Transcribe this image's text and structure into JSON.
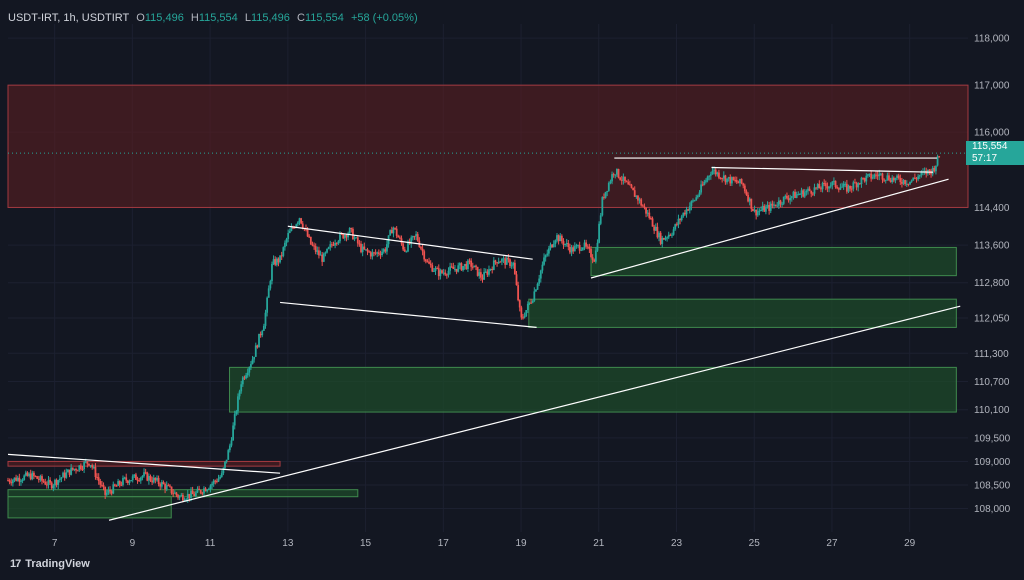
{
  "header": {
    "symbol": "USDT-IRT, 1h, USDTIRT",
    "open_label": "O",
    "open": "115,496",
    "high_label": "H",
    "high": "115,554",
    "low_label": "L",
    "low": "115,496",
    "close_label": "C",
    "close": "115,554",
    "change": "+58 (+0.05%)"
  },
  "last_price": {
    "value": "115,554",
    "countdown": "57:17"
  },
  "brand": {
    "name": "TradingView"
  },
  "colors": {
    "background": "#131722",
    "up": "#26a69a",
    "down": "#ef5350",
    "supply_zone": "#5a1e22",
    "demand_zone": "#1e4a2a",
    "trendline": "#ffffff",
    "axis_text": "#b2b5be"
  },
  "chart_data": {
    "type": "candlestick",
    "x_axis": {
      "ticks": [
        "7",
        "9",
        "11",
        "13",
        "15",
        "17",
        "19",
        "21",
        "23",
        "25",
        "27",
        "29"
      ],
      "range_days": [
        5.8,
        30.5
      ]
    },
    "y_axis": {
      "ticks": [
        "118,000",
        "117,000",
        "116,000",
        "114,400",
        "113,600",
        "112,800",
        "112,050",
        "111,300",
        "110,700",
        "110,100",
        "109,500",
        "109,000",
        "108,500",
        "108,000"
      ],
      "range": [
        107500,
        118300
      ]
    },
    "supply_zones": [
      {
        "x_start": 5.8,
        "x_end": 30.5,
        "y_low": 114400,
        "y_high": 117000
      },
      {
        "x_start": 5.8,
        "x_end": 12.8,
        "y_low": 108900,
        "y_high": 109000
      }
    ],
    "demand_zones": [
      {
        "x_start": 11.5,
        "x_end": 30.2,
        "y_low": 110050,
        "y_high": 111000
      },
      {
        "x_start": 19.2,
        "x_end": 30.2,
        "y_low": 111850,
        "y_high": 112450
      },
      {
        "x_start": 20.8,
        "x_end": 30.2,
        "y_low": 112950,
        "y_high": 113550
      },
      {
        "x_start": 5.8,
        "x_end": 14.8,
        "y_low": 108250,
        "y_high": 108400
      },
      {
        "x_start": 5.8,
        "x_end": 10.0,
        "y_low": 107800,
        "y_high": 108250
      }
    ],
    "trendlines": [
      {
        "x1": 5.8,
        "y1": 109150,
        "x2": 12.8,
        "y2": 108750
      },
      {
        "x1": 8.4,
        "y1": 107750,
        "x2": 30.3,
        "y2": 112300
      },
      {
        "x1": 12.8,
        "y1": 112380,
        "x2": 19.4,
        "y2": 111850
      },
      {
        "x1": 13.0,
        "y1": 114000,
        "x2": 19.3,
        "y2": 113300
      },
      {
        "x1": 20.8,
        "y1": 112900,
        "x2": 30.0,
        "y2": 115000
      },
      {
        "x1": 21.4,
        "y1": 115450,
        "x2": 29.7,
        "y2": 115450
      },
      {
        "x1": 23.9,
        "y1": 115250,
        "x2": 29.6,
        "y2": 115150
      }
    ],
    "last_price_line": 115554,
    "path": [
      [
        5.8,
        108600
      ],
      [
        6.4,
        108700
      ],
      [
        6.9,
        108500
      ],
      [
        7.4,
        108800
      ],
      [
        7.9,
        109000
      ],
      [
        8.3,
        108300
      ],
      [
        8.8,
        108600
      ],
      [
        9.3,
        108700
      ],
      [
        9.8,
        108500
      ],
      [
        10.2,
        108250
      ],
      [
        10.6,
        108300
      ],
      [
        11.0,
        108500
      ],
      [
        11.3,
        108700
      ],
      [
        11.5,
        109300
      ],
      [
        11.8,
        110700
      ],
      [
        12.1,
        111200
      ],
      [
        12.4,
        112000
      ],
      [
        12.6,
        113200
      ],
      [
        12.8,
        113300
      ],
      [
        13.0,
        113800
      ],
      [
        13.3,
        114200
      ],
      [
        13.6,
        113600
      ],
      [
        13.9,
        113300
      ],
      [
        14.2,
        113700
      ],
      [
        14.6,
        113900
      ],
      [
        14.9,
        113500
      ],
      [
        15.2,
        113400
      ],
      [
        15.5,
        113500
      ],
      [
        15.7,
        114000
      ],
      [
        16.0,
        113500
      ],
      [
        16.3,
        113800
      ],
      [
        16.6,
        113200
      ],
      [
        16.9,
        113000
      ],
      [
        17.3,
        113100
      ],
      [
        17.7,
        113200
      ],
      [
        18.0,
        112900
      ],
      [
        18.4,
        113300
      ],
      [
        18.8,
        113200
      ],
      [
        19.0,
        112000
      ],
      [
        19.3,
        112500
      ],
      [
        19.6,
        113300
      ],
      [
        19.9,
        113800
      ],
      [
        20.3,
        113500
      ],
      [
        20.6,
        113600
      ],
      [
        20.9,
        113300
      ],
      [
        21.1,
        114600
      ],
      [
        21.4,
        115200
      ],
      [
        21.7,
        114900
      ],
      [
        22.0,
        114600
      ],
      [
        22.3,
        114200
      ],
      [
        22.6,
        113700
      ],
      [
        22.9,
        113900
      ],
      [
        23.2,
        114300
      ],
      [
        23.5,
        114600
      ],
      [
        23.9,
        115200
      ],
      [
        24.3,
        115000
      ],
      [
        24.7,
        114900
      ],
      [
        25.0,
        114300
      ],
      [
        25.4,
        114400
      ],
      [
        25.8,
        114600
      ],
      [
        26.2,
        114700
      ],
      [
        26.6,
        114800
      ],
      [
        27.0,
        114900
      ],
      [
        27.4,
        114800
      ],
      [
        27.8,
        115000
      ],
      [
        28.2,
        115100
      ],
      [
        28.6,
        115000
      ],
      [
        29.0,
        114950
      ],
      [
        29.3,
        115100
      ],
      [
        29.6,
        115200
      ],
      [
        29.8,
        115554
      ]
    ]
  }
}
